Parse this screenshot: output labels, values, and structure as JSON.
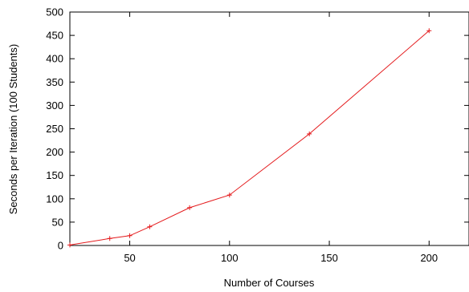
{
  "chart_data": {
    "type": "line",
    "xlabel": "Number of Courses",
    "ylabel": "Seconds per Iteration (100 Students)",
    "xlim": [
      20,
      220
    ],
    "ylim": [
      0,
      500
    ],
    "xticks": [
      50,
      100,
      150,
      200
    ],
    "yticks": [
      0,
      50,
      100,
      150,
      200,
      250,
      300,
      350,
      400,
      450,
      500
    ],
    "grid": false,
    "legend": "none",
    "series": [
      {
        "color": "#e41a1c",
        "marker": "plus",
        "x": [
          20,
          40,
          50,
          60,
          80,
          100,
          140,
          200
        ],
        "y": [
          1,
          15,
          21,
          40,
          81,
          108,
          239,
          460
        ]
      }
    ]
  }
}
